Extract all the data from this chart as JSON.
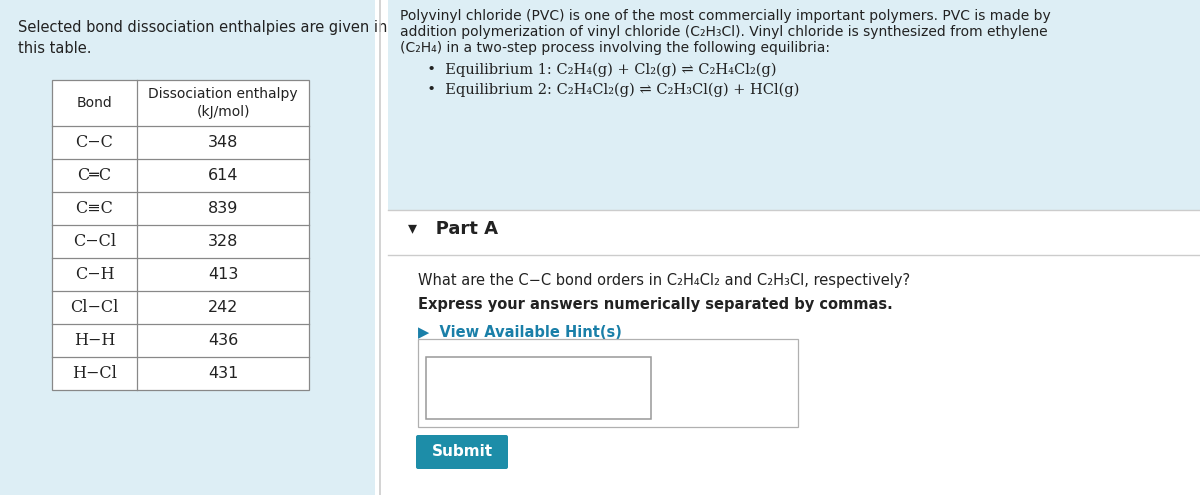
{
  "left_bg_color": "#ddeef5",
  "info_bg_color": "#ddeef5",
  "white": "#ffffff",
  "text_color": "#222222",
  "table_border_color": "#888888",
  "divider_line_color": "#cccccc",
  "hint_color": "#1a7fa8",
  "submit_bg": "#1d8da8",
  "left_title": "Selected bond dissociation enthalpies are given in\nthis table.",
  "table_bonds": [
    "C−C",
    "C═C",
    "C≡C",
    "C−Cl",
    "C−H",
    "Cl−Cl",
    "H−H",
    "H−Cl"
  ],
  "table_values": [
    "348",
    "614",
    "839",
    "328",
    "413",
    "242",
    "436",
    "431"
  ],
  "intro_line1": "Polyvinyl chloride (PVC) is one of the most commercially important polymers. PVC is made by",
  "intro_line2": "addition polymerization of vinyl chloride (C₂H₃Cl). Vinyl chloride is synthesized from ethylene",
  "intro_line3": "(C₂H₄) in a two-step process involving the following equilibria:",
  "eq1": "  •  Equilibrium 1: C₂H₄(g) + Cl₂(g) ⇌ C₂H₄Cl₂(g)",
  "eq2": "  •  Equilibrium 2: C₂H₄Cl₂(g) ⇌ C₂H₃Cl(g) + HCl(g)",
  "part_a": "▾   Part A",
  "question": "What are the C−C bond orders in C₂H₄Cl₂ and C₂H₃Cl, respectively?",
  "bold_line": "Express your answers numerically separated by commas.",
  "hint": "▶  View Available Hint(s)",
  "submit": "Submit"
}
